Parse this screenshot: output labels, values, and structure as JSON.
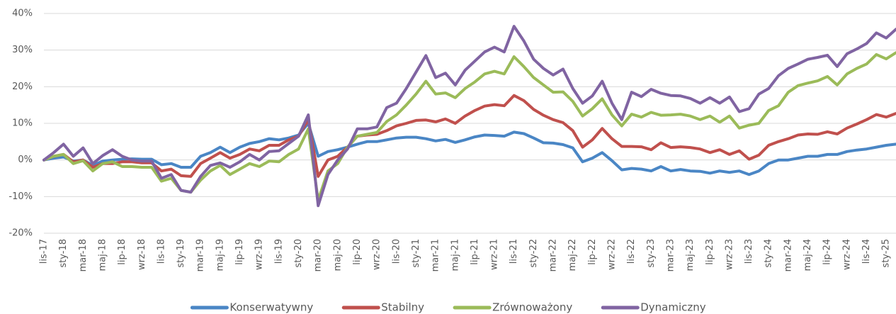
{
  "chart_data": {
    "type": "line",
    "categories": [
      "lis-17",
      null,
      "sty-18",
      null,
      "mar-18",
      null,
      "maj-18",
      null,
      "lip-18",
      null,
      "wrz-18",
      null,
      "lis-18",
      null,
      "sty-19",
      null,
      "mar-19",
      null,
      "maj-19",
      null,
      "lip-19",
      null,
      "wrz-19",
      null,
      "lis-19",
      null,
      "sty-20",
      null,
      "mar-20",
      null,
      "maj-20",
      null,
      "lip-20",
      null,
      "wrz-20",
      null,
      "lis-20",
      null,
      "sty-21",
      null,
      "mar-21",
      null,
      "maj-21",
      null,
      "lip-21",
      null,
      "wrz-21",
      null,
      "lis-21",
      null,
      "sty-22",
      null,
      "mar-22",
      null,
      "maj-22",
      null,
      "lip-22",
      null,
      "wrz-22",
      null,
      "lis-22",
      null,
      "sty-23",
      null,
      "mar-23",
      null,
      "maj-23",
      null,
      "lip-23",
      null,
      "wrz-23",
      null,
      "lis-23",
      null,
      "sty-24",
      null,
      "mar-24",
      null,
      "maj-24",
      null,
      "lip-24",
      null,
      "wrz-24",
      null,
      "lis-24",
      null,
      "sty-25",
      null
    ],
    "series": [
      {
        "name": "Konserwatywny",
        "color": "#4a86c5",
        "values": [
          0,
          0.5,
          0.8,
          -0.3,
          0,
          -1.5,
          -0.3,
          0,
          0.2,
          0.3,
          0.2,
          0.2,
          -1.3,
          -1,
          -2,
          -2,
          1,
          2,
          3.5,
          2,
          3.5,
          4.5,
          5,
          5.8,
          5.5,
          6,
          6.8,
          10,
          1,
          2.3,
          2.8,
          3.5,
          4.3,
          5,
          5,
          5.5,
          6,
          6.2,
          6.2,
          5.8,
          5.2,
          5.6,
          4.8,
          5.5,
          6.3,
          6.8,
          6.7,
          6.5,
          7.6,
          7.2,
          6,
          4.7,
          4.6,
          4.2,
          3.3,
          -0.5,
          0.5,
          2,
          -0.2,
          -2.7,
          -2.3,
          -2.5,
          -3,
          -1.8,
          -3,
          -2.6,
          -3,
          -3.1,
          -3.6,
          -3,
          -3.4,
          -3,
          -4,
          -3,
          -1,
          0,
          0,
          0.5,
          1,
          1,
          1.5,
          1.5,
          2.3,
          2.7,
          3,
          3.5,
          4,
          4.3
        ]
      },
      {
        "name": "Stabilny",
        "color": "#c0504d",
        "values": [
          0,
          1,
          1.5,
          -0.5,
          0,
          -2,
          -1,
          -1,
          -0.5,
          -0.5,
          -0.8,
          -0.8,
          -3,
          -2.5,
          -4.3,
          -4.5,
          -1,
          0.5,
          2,
          0.5,
          1.5,
          3,
          2.5,
          4,
          4,
          5.5,
          6.5,
          11,
          -4.5,
          0,
          1,
          3.5,
          6.5,
          6.8,
          7,
          8,
          9.3,
          10,
          10.8,
          10.9,
          10.4,
          11.2,
          10,
          12,
          13.5,
          14.7,
          15.1,
          14.8,
          17.6,
          16.2,
          13.8,
          12.2,
          11,
          10.2,
          8,
          3.5,
          5.5,
          8.6,
          5.8,
          3.7,
          3.7,
          3.6,
          2.8,
          4.7,
          3.4,
          3.6,
          3.4,
          3,
          2,
          2.8,
          1.5,
          2.5,
          0.2,
          1.3,
          4,
          5,
          5.8,
          6.8,
          7.1,
          7,
          7.7,
          7.1,
          8.7,
          9.8,
          11,
          12.4,
          11.7,
          12.7
        ]
      },
      {
        "name": "Zrównoważony",
        "color": "#9bbb59",
        "values": [
          0,
          1,
          1.5,
          -1,
          -0.2,
          -3,
          -1,
          -0.5,
          -1.8,
          -1.8,
          -2,
          -2,
          -5.8,
          -5,
          -8.3,
          -8.8,
          -5.5,
          -3,
          -1.5,
          -4,
          -2.5,
          -1,
          -1.8,
          -0.3,
          -0.5,
          1.5,
          3,
          8.5,
          -11,
          -3,
          -1,
          3.5,
          6.5,
          7,
          7.5,
          10.5,
          12.3,
          15,
          18,
          21.5,
          18,
          18.3,
          17,
          19.5,
          21.3,
          23.5,
          24.2,
          23.5,
          28.2,
          25.5,
          22.5,
          20.5,
          18.5,
          18.6,
          16,
          12,
          14,
          16.7,
          12.3,
          9.3,
          12.5,
          11.7,
          13,
          12.2,
          12.3,
          12.5,
          12,
          11,
          12,
          10.3,
          12,
          8.7,
          9.5,
          10,
          13.5,
          14.8,
          18.5,
          20.3,
          21,
          21.6,
          22.8,
          20.5,
          23.5,
          25,
          26.2,
          28.8,
          27.6,
          29.3
        ]
      },
      {
        "name": "Dynamiczny",
        "color": "#8064a2",
        "values": [
          0,
          2,
          4.3,
          1,
          3.3,
          -1,
          1.2,
          2.8,
          1,
          0,
          -0.3,
          -0.3,
          -5,
          -4,
          -8.3,
          -8.8,
          -4.5,
          -1.5,
          -0.8,
          -2,
          -0.5,
          1.5,
          0,
          2.3,
          2.5,
          4.5,
          6.5,
          12.3,
          -12.5,
          -4,
          0,
          3,
          8.5,
          8.5,
          9,
          14.3,
          15.5,
          19.5,
          24,
          28.5,
          22.5,
          23.7,
          20.5,
          24.5,
          27,
          29.5,
          30.8,
          29.5,
          36.5,
          32.5,
          27.5,
          25,
          23.2,
          24.8,
          19.5,
          15.5,
          17.5,
          21.5,
          15.5,
          11,
          18.5,
          17.3,
          19.3,
          18.2,
          17.6,
          17.5,
          16.8,
          15.5,
          17,
          15.5,
          17.2,
          13.2,
          14,
          18,
          19.5,
          23,
          25,
          26.2,
          27.5,
          28,
          28.6,
          25.5,
          29,
          30.3,
          31.8,
          34.7,
          33.3,
          35.7
        ]
      }
    ],
    "ylim": [
      -20,
      40
    ],
    "yticks": [
      {
        "value": -20,
        "label": "-20%"
      },
      {
        "value": -10,
        "label": "-10%"
      },
      {
        "value": 0,
        "label": "0%"
      },
      {
        "value": 10,
        "label": "10%"
      },
      {
        "value": 20,
        "label": "20%"
      },
      {
        "value": 30,
        "label": "30%"
      },
      {
        "value": 40,
        "label": "40%"
      }
    ],
    "grid": true,
    "legend": "bottom"
  }
}
